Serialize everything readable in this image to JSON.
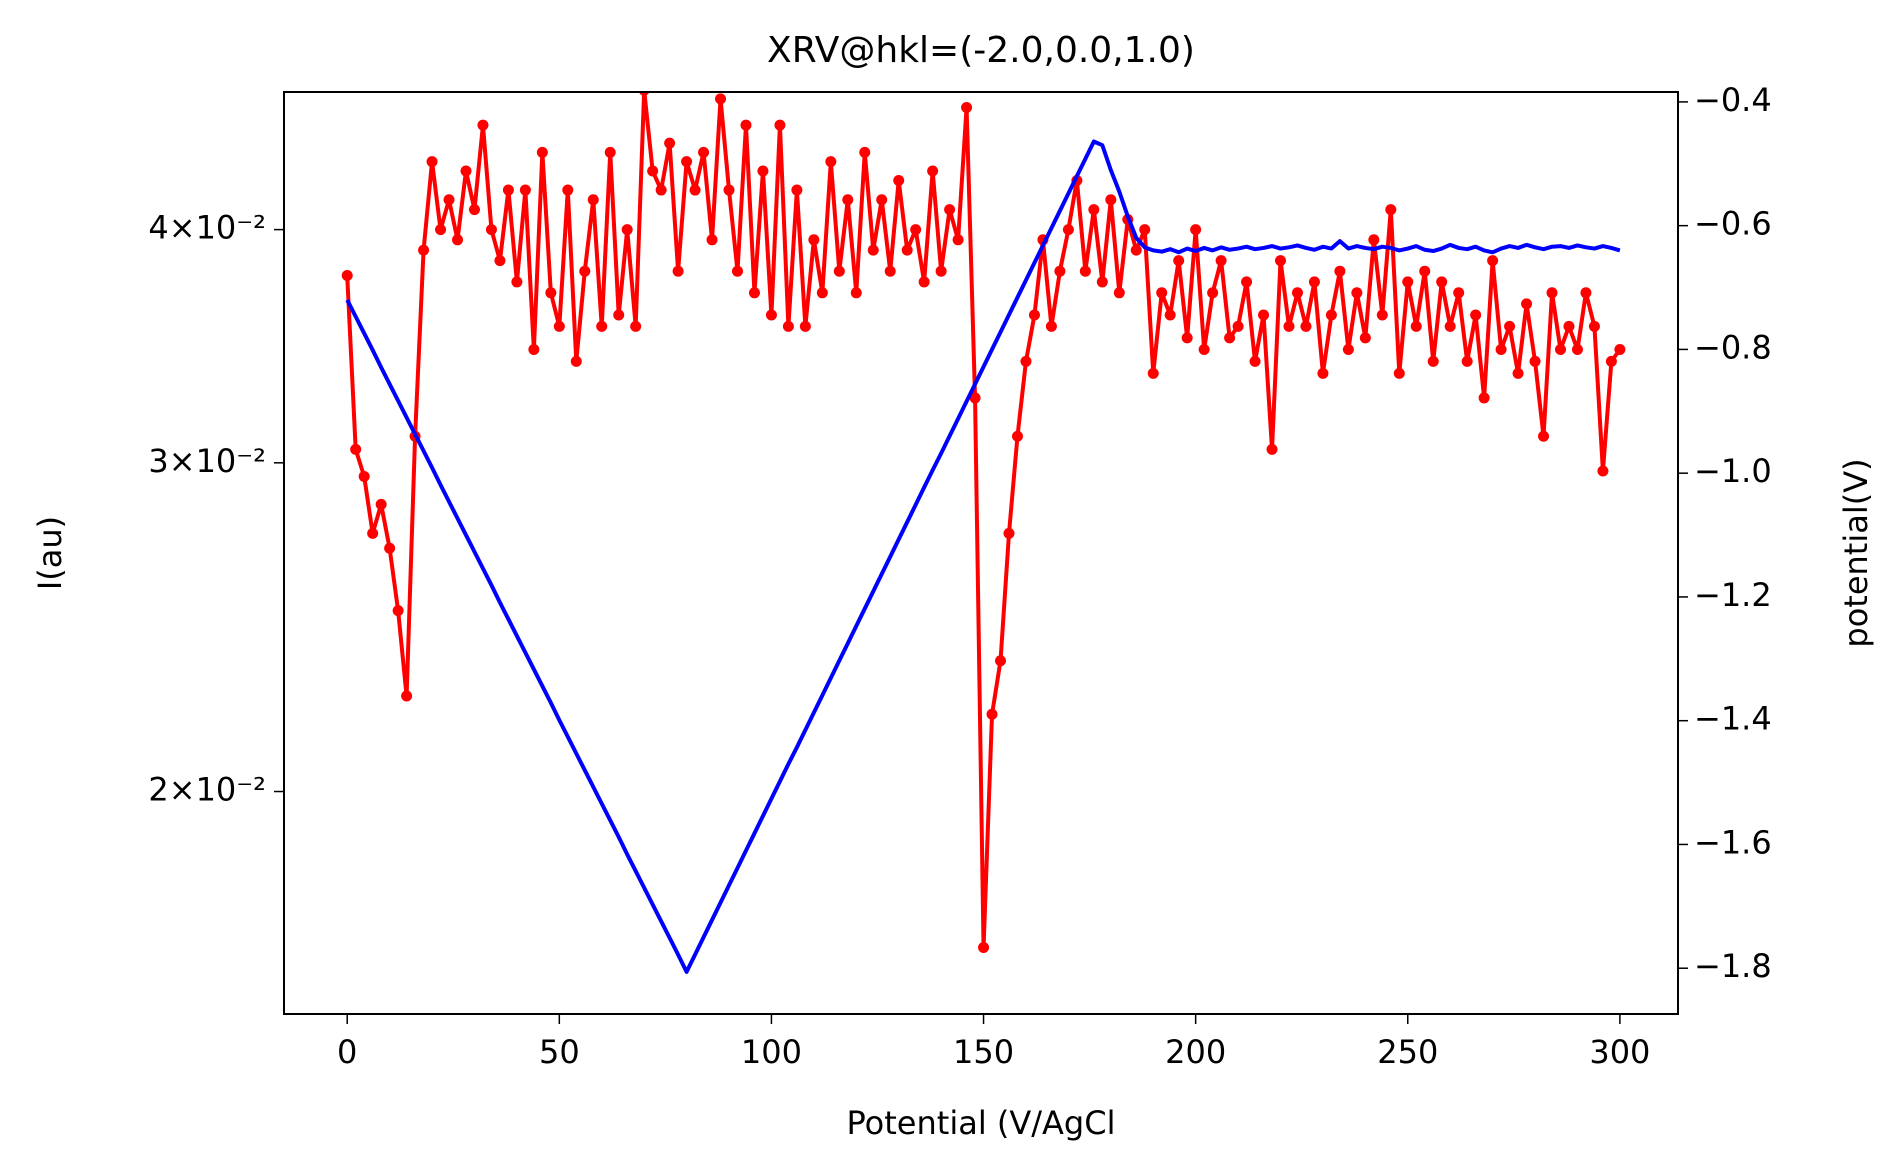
{
  "chart_data": {
    "type": "line",
    "title": "XRV@hkl=(-2.0,0.0,1.0)",
    "xlabel": "Potential (V/AgCl",
    "ylabel": "I(au)",
    "y2label": "potential(V)",
    "xlim": [
      -14.9,
      313.7
    ],
    "xticks": [
      0,
      50,
      100,
      150,
      200,
      250,
      300
    ],
    "ylim": [
      0.0152,
      0.0474
    ],
    "ylog": true,
    "yticks": [
      {
        "value": 0.02,
        "label": "2×10⁻²"
      },
      {
        "value": 0.03,
        "label": "3×10⁻²"
      },
      {
        "value": 0.04,
        "label": "4×10⁻²"
      }
    ],
    "y2lim": [
      -1.874,
      -0.384
    ],
    "y2ticks": [
      {
        "value": -1.8,
        "label": "−1.8"
      },
      {
        "value": -1.6,
        "label": "−1.6"
      },
      {
        "value": -1.4,
        "label": "−1.4"
      },
      {
        "value": -1.2,
        "label": "−1.2"
      },
      {
        "value": -1.0,
        "label": "−1.0"
      },
      {
        "value": -0.8,
        "label": "−0.8"
      },
      {
        "value": -0.6,
        "label": "−0.6"
      },
      {
        "value": -0.4,
        "label": "−0.4"
      }
    ],
    "grid": false,
    "x": [
      0,
      2,
      4,
      6,
      8,
      10,
      12,
      14,
      16,
      18,
      20,
      22,
      24,
      26,
      28,
      30,
      32,
      34,
      36,
      38,
      40,
      42,
      44,
      46,
      48,
      50,
      52,
      54,
      56,
      58,
      60,
      62,
      64,
      66,
      68,
      70,
      72,
      74,
      76,
      78,
      80,
      82,
      84,
      86,
      88,
      90,
      92,
      94,
      96,
      98,
      100,
      102,
      104,
      106,
      108,
      110,
      112,
      114,
      116,
      118,
      120,
      122,
      124,
      126,
      128,
      130,
      132,
      134,
      136,
      138,
      140,
      142,
      144,
      146,
      148,
      150,
      152,
      154,
      156,
      158,
      160,
      162,
      164,
      166,
      168,
      170,
      172,
      174,
      176,
      178,
      180,
      182,
      184,
      186,
      188,
      190,
      192,
      194,
      196,
      198,
      200,
      202,
      204,
      206,
      208,
      210,
      212,
      214,
      216,
      218,
      220,
      222,
      224,
      226,
      228,
      230,
      232,
      234,
      236,
      238,
      240,
      242,
      244,
      246,
      248,
      250,
      252,
      254,
      256,
      258,
      260,
      262,
      264,
      266,
      268,
      270,
      272,
      274,
      276,
      278,
      280,
      282,
      284,
      286,
      288,
      290,
      292,
      294,
      296,
      298,
      300
    ],
    "series": [
      {
        "color": "#ff0000",
        "marker": true,
        "values": [
          0.0378,
          0.0305,
          0.0295,
          0.0275,
          0.0285,
          0.027,
          0.025,
          0.0225,
          0.031,
          0.039,
          0.0435,
          0.04,
          0.0415,
          0.0395,
          0.043,
          0.041,
          0.0455,
          0.04,
          0.0385,
          0.042,
          0.0375,
          0.042,
          0.0345,
          0.044,
          0.037,
          0.0355,
          0.042,
          0.034,
          0.038,
          0.0415,
          0.0355,
          0.044,
          0.036,
          0.04,
          0.0355,
          0.0475,
          0.043,
          0.042,
          0.0445,
          0.038,
          0.0435,
          0.042,
          0.044,
          0.0395,
          0.047,
          0.042,
          0.038,
          0.0455,
          0.037,
          0.043,
          0.036,
          0.0455,
          0.0355,
          0.042,
          0.0355,
          0.0395,
          0.037,
          0.0435,
          0.038,
          0.0415,
          0.037,
          0.044,
          0.039,
          0.0415,
          0.038,
          0.0425,
          0.039,
          0.04,
          0.0375,
          0.043,
          0.038,
          0.041,
          0.0395,
          0.0465,
          0.0325,
          0.0165,
          0.022,
          0.0235,
          0.0275,
          0.031,
          0.034,
          0.036,
          0.0395,
          0.0355,
          0.038,
          0.04,
          0.0425,
          0.038,
          0.041,
          0.0375,
          0.0415,
          0.037,
          0.0405,
          0.039,
          0.04,
          0.0335,
          0.037,
          0.036,
          0.0385,
          0.035,
          0.04,
          0.0345,
          0.037,
          0.0385,
          0.035,
          0.0355,
          0.0375,
          0.034,
          0.036,
          0.0305,
          0.0385,
          0.0355,
          0.037,
          0.0355,
          0.0375,
          0.0335,
          0.036,
          0.038,
          0.0345,
          0.037,
          0.035,
          0.0395,
          0.036,
          0.041,
          0.0335,
          0.0375,
          0.0355,
          0.038,
          0.034,
          0.0375,
          0.0355,
          0.037,
          0.034,
          0.036,
          0.0325,
          0.0385,
          0.0345,
          0.0355,
          0.0335,
          0.0365,
          0.034,
          0.031,
          0.037,
          0.0345,
          0.0355,
          0.0345,
          0.037,
          0.0355,
          0.0297,
          0.034,
          0.0345
        ]
      },
      {
        "color": "#0000ff",
        "axis": "y2",
        "values": [
          -0.72,
          -0.747,
          -0.774,
          -0.801,
          -0.829,
          -0.856,
          -0.883,
          -0.91,
          -0.937,
          -0.964,
          -0.991,
          -1.019,
          -1.046,
          -1.073,
          -1.1,
          -1.127,
          -1.154,
          -1.181,
          -1.209,
          -1.236,
          -1.263,
          -1.29,
          -1.317,
          -1.344,
          -1.371,
          -1.399,
          -1.426,
          -1.453,
          -1.48,
          -1.507,
          -1.534,
          -1.561,
          -1.588,
          -1.616,
          -1.643,
          -1.67,
          -1.697,
          -1.724,
          -1.751,
          -1.778,
          -1.806,
          -1.778,
          -1.75,
          -1.722,
          -1.694,
          -1.666,
          -1.638,
          -1.61,
          -1.582,
          -1.554,
          -1.526,
          -1.498,
          -1.47,
          -1.443,
          -1.415,
          -1.387,
          -1.359,
          -1.331,
          -1.303,
          -1.275,
          -1.247,
          -1.219,
          -1.191,
          -1.163,
          -1.135,
          -1.107,
          -1.079,
          -1.051,
          -1.023,
          -0.995,
          -0.968,
          -0.94,
          -0.912,
          -0.884,
          -0.856,
          -0.828,
          -0.8,
          -0.772,
          -0.744,
          -0.716,
          -0.688,
          -0.66,
          -0.632,
          -0.604,
          -0.576,
          -0.548,
          -0.52,
          -0.492,
          -0.464,
          -0.47,
          -0.51,
          -0.545,
          -0.585,
          -0.62,
          -0.635,
          -0.64,
          -0.642,
          -0.638,
          -0.643,
          -0.637,
          -0.641,
          -0.636,
          -0.64,
          -0.635,
          -0.639,
          -0.637,
          -0.634,
          -0.638,
          -0.636,
          -0.633,
          -0.637,
          -0.635,
          -0.632,
          -0.636,
          -0.639,
          -0.634,
          -0.637,
          -0.625,
          -0.637,
          -0.633,
          -0.636,
          -0.638,
          -0.634,
          -0.636,
          -0.64,
          -0.637,
          -0.633,
          -0.639,
          -0.641,
          -0.637,
          -0.631,
          -0.636,
          -0.638,
          -0.634,
          -0.64,
          -0.643,
          -0.637,
          -0.633,
          -0.636,
          -0.631,
          -0.635,
          -0.638,
          -0.634,
          -0.633,
          -0.636,
          -0.632,
          -0.635,
          -0.637,
          -0.633,
          -0.636,
          -0.64
        ]
      }
    ]
  }
}
